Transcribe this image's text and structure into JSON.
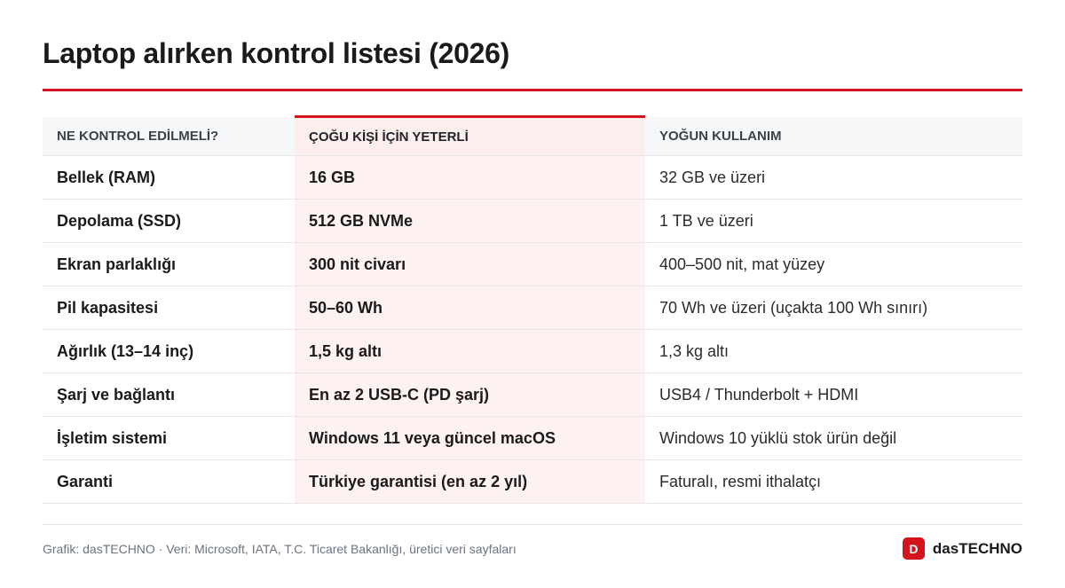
{
  "title": "Laptop alırken kontrol listesi (2026)",
  "colors": {
    "accent": "#d4141c",
    "highlight_column_bg": "#fdf1f1",
    "header_bg": "#f6f7f9"
  },
  "table": {
    "headers": [
      "NE KONTROL EDİLMELİ?",
      "ÇOĞU KİŞİ İÇİN YETERLİ",
      "YOĞUN KULLANIM"
    ],
    "rows": [
      [
        "Bellek (RAM)",
        "16 GB",
        "32 GB ve üzeri"
      ],
      [
        "Depolama (SSD)",
        "512 GB NVMe",
        "1 TB ve üzeri"
      ],
      [
        "Ekran parlaklığı",
        "300 nit civarı",
        "400–500 nit, mat yüzey"
      ],
      [
        "Pil kapasitesi",
        "50–60 Wh",
        "70 Wh ve üzeri (uçakta 100 Wh sınırı)"
      ],
      [
        "Ağırlık (13–14 inç)",
        "1,5 kg altı",
        "1,3 kg altı"
      ],
      [
        "Şarj ve bağlantı",
        "En az 2 USB-C (PD şarj)",
        "USB4 / Thunderbolt + HDMI"
      ],
      [
        "İşletim sistemi",
        "Windows 11 veya güncel macOS",
        "Windows 10 yüklü stok ürün değil"
      ],
      [
        "Garanti",
        "Türkiye garantisi (en az 2 yıl)",
        "Faturalı, resmi ithalatçı"
      ]
    ]
  },
  "footer": {
    "source": "Grafik: dasTECHNO · Veri: Microsoft, IATA, T.C. Ticaret Bakanlığı, üretici veri sayfaları",
    "brand_icon_letter": "D",
    "brand_name": "dasTECHNO",
    "brand_icon": "brand-logo-icon"
  }
}
